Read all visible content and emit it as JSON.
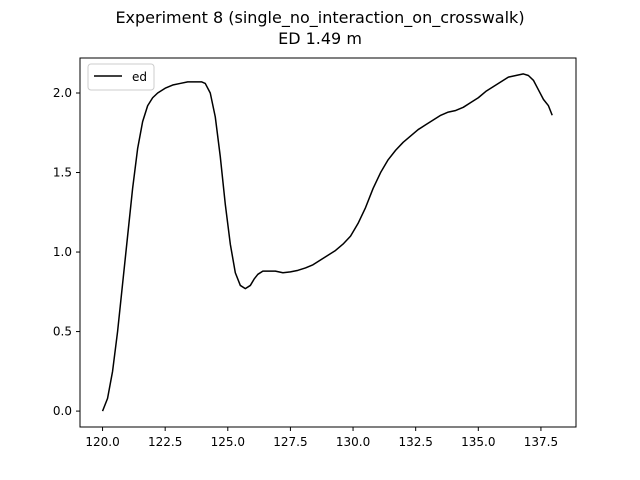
{
  "chart_data": {
    "type": "line",
    "title": "Experiment 8 (single_no_interaction_on_crosswalk)",
    "subtitle": "ED 1.49 m",
    "xlabel": "",
    "ylabel": "",
    "xlim": [
      119.1,
      138.9
    ],
    "ylim": [
      -0.1,
      2.22
    ],
    "xticks": [
      120.0,
      122.5,
      125.0,
      127.5,
      130.0,
      132.5,
      135.0,
      137.5
    ],
    "xtick_labels": [
      "120.0",
      "122.5",
      "125.0",
      "127.5",
      "130.0",
      "132.5",
      "135.0",
      "137.5"
    ],
    "yticks": [
      0.0,
      0.5,
      1.0,
      1.5,
      2.0
    ],
    "ytick_labels": [
      "0.0",
      "0.5",
      "1.0",
      "1.5",
      "2.0"
    ],
    "grid": false,
    "legend_position": "top-left",
    "series": [
      {
        "name": "ed",
        "color": "#000000",
        "x": [
          120.0,
          120.2,
          120.4,
          120.6,
          120.8,
          121.0,
          121.2,
          121.4,
          121.6,
          121.8,
          122.0,
          122.2,
          122.5,
          122.8,
          123.1,
          123.4,
          123.7,
          123.95,
          124.1,
          124.3,
          124.5,
          124.7,
          124.9,
          125.1,
          125.3,
          125.5,
          125.7,
          125.9,
          126.05,
          126.2,
          126.4,
          126.6,
          126.9,
          127.2,
          127.5,
          127.8,
          128.1,
          128.4,
          128.7,
          129.0,
          129.3,
          129.6,
          129.9,
          130.2,
          130.5,
          130.8,
          131.1,
          131.4,
          131.7,
          132.0,
          132.3,
          132.6,
          132.9,
          133.2,
          133.5,
          133.8,
          134.1,
          134.4,
          134.7,
          135.0,
          135.3,
          135.6,
          135.9,
          136.2,
          136.5,
          136.8,
          137.0,
          137.2,
          137.4,
          137.6,
          137.8,
          137.95
        ],
        "y": [
          0.0,
          0.08,
          0.25,
          0.5,
          0.8,
          1.1,
          1.4,
          1.65,
          1.82,
          1.92,
          1.97,
          2.0,
          2.03,
          2.05,
          2.06,
          2.07,
          2.07,
          2.07,
          2.06,
          2.0,
          1.85,
          1.6,
          1.3,
          1.05,
          0.87,
          0.79,
          0.77,
          0.79,
          0.83,
          0.86,
          0.88,
          0.88,
          0.88,
          0.87,
          0.875,
          0.885,
          0.9,
          0.92,
          0.95,
          0.98,
          1.01,
          1.05,
          1.1,
          1.18,
          1.28,
          1.4,
          1.5,
          1.58,
          1.64,
          1.69,
          1.73,
          1.77,
          1.8,
          1.83,
          1.86,
          1.88,
          1.89,
          1.91,
          1.94,
          1.97,
          2.01,
          2.04,
          2.07,
          2.1,
          2.11,
          2.12,
          2.11,
          2.08,
          2.02,
          1.96,
          1.92,
          1.86
        ]
      }
    ]
  }
}
